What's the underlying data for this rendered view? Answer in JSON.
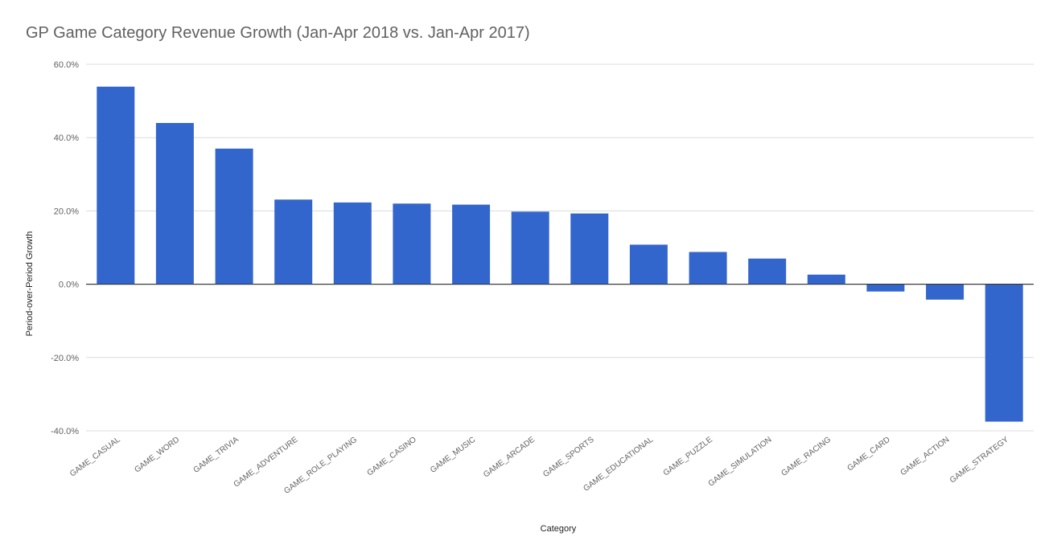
{
  "chart_data": {
    "type": "bar",
    "title": "GP Game Category Revenue Growth (Jan-Apr 2018 vs. Jan-Apr 2017)",
    "xlabel": "Category",
    "ylabel": "Period-over-Period Growth",
    "ylim": [
      -40,
      60
    ],
    "yticks": [
      60,
      40,
      20,
      0,
      -20,
      -40
    ],
    "ytick_labels": [
      "60.0%",
      "40.0%",
      "20.0%",
      "0.0%",
      "-20.0%",
      "-40.0%"
    ],
    "grid": true,
    "bar_color": "#3366cc",
    "categories": [
      "GAME_CASUAL",
      "GAME_WORD",
      "GAME_TRIVIA",
      "GAME_ADVENTURE",
      "GAME_ROLE_PLAYING",
      "GAME_CASINO",
      "GAME_MUSIC",
      "GAME_ARCADE",
      "GAME_SPORTS",
      "GAME_EDUCATIONAL",
      "GAME_PUZZLE",
      "GAME_SIMULATION",
      "GAME_RACING",
      "GAME_CARD",
      "GAME_ACTION",
      "GAME_STRATEGY"
    ],
    "values": [
      53.9,
      44.0,
      37.0,
      23.1,
      22.3,
      22.0,
      21.7,
      19.8,
      19.3,
      10.8,
      8.8,
      7.0,
      2.6,
      -2.0,
      -4.2,
      -37.5
    ]
  }
}
